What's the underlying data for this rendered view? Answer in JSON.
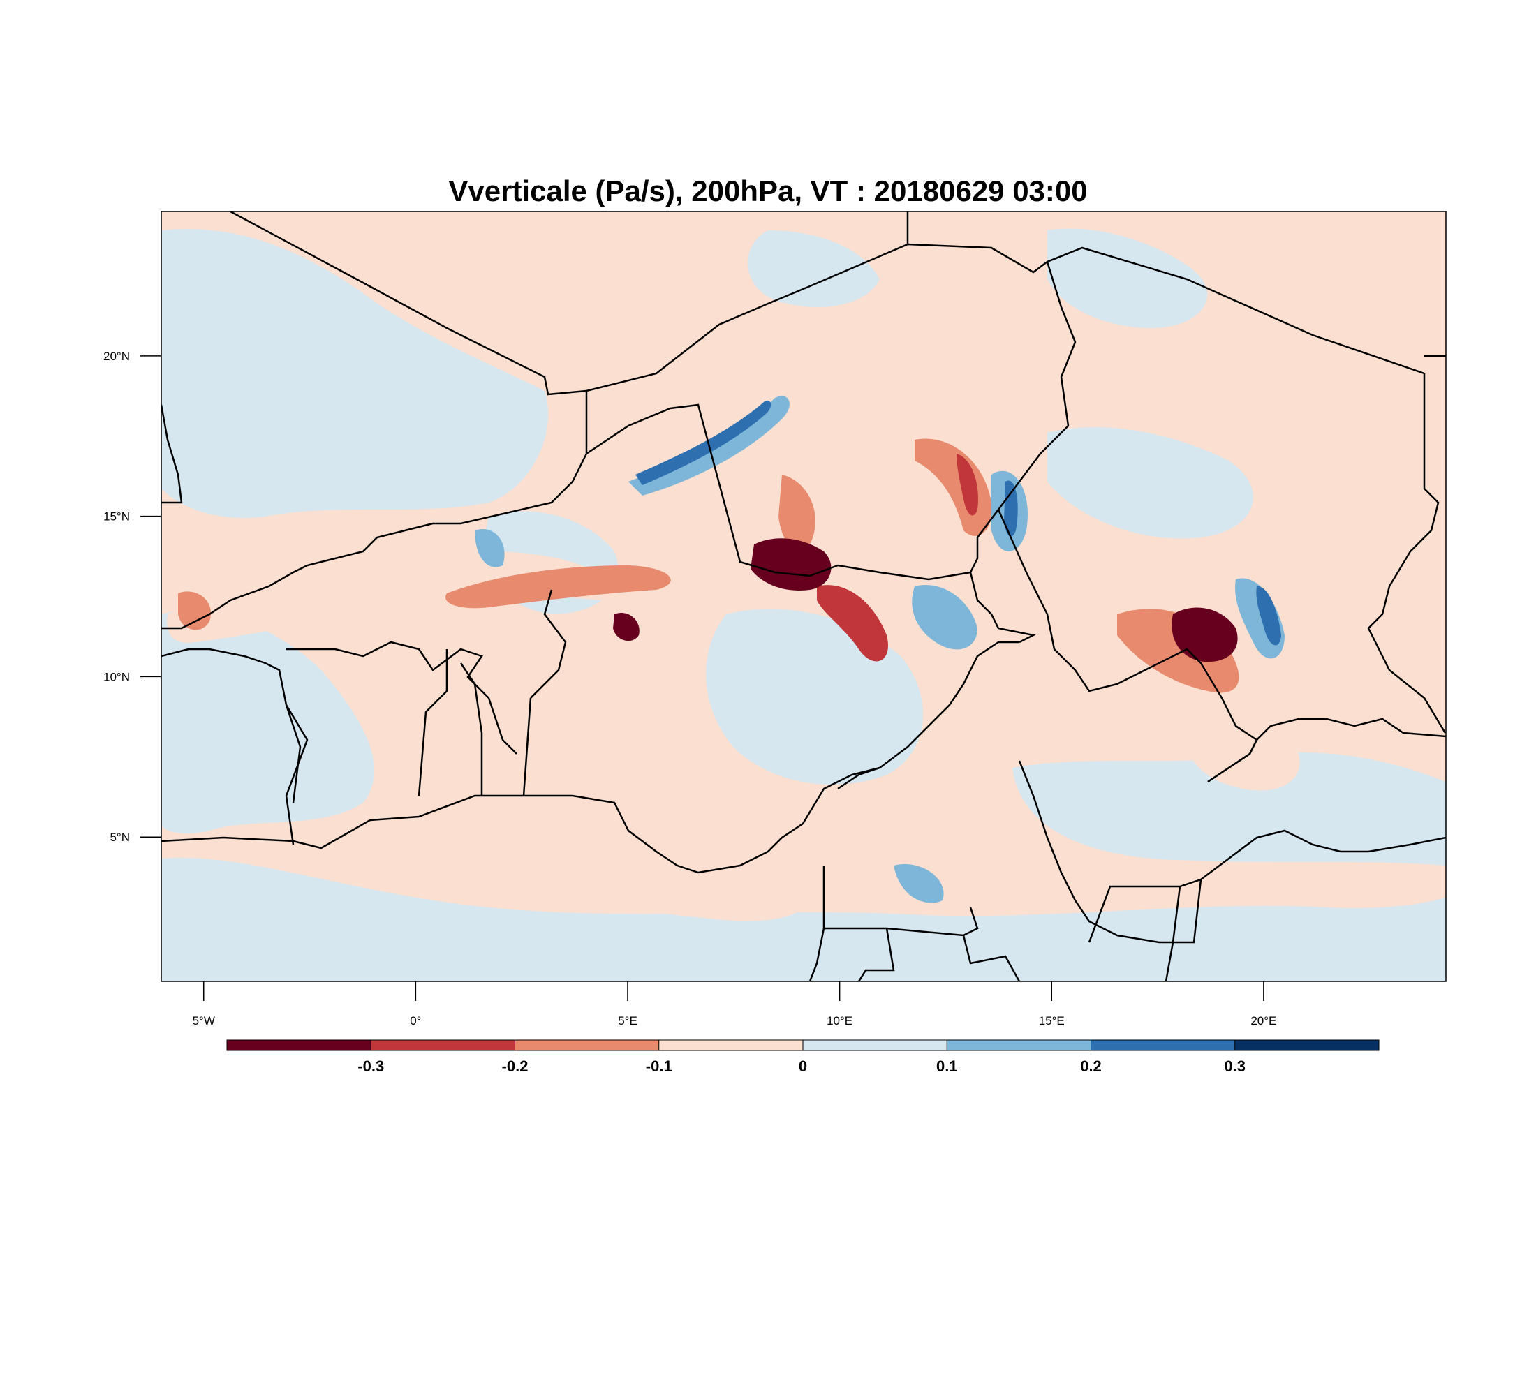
{
  "title": "Vverticale (Pa/s), 200hPa, VT : 20180629  03:00",
  "map": {
    "lon_range": [
      -6,
      24.3
    ],
    "lat_range": [
      0.5,
      24.5
    ],
    "lon_ticks": [
      {
        "value": -5,
        "label": "5°W"
      },
      {
        "value": 0,
        "label": "0°"
      },
      {
        "value": 5,
        "label": "5°E"
      },
      {
        "value": 10,
        "label": "10°E"
      },
      {
        "value": 15,
        "label": "15°E"
      },
      {
        "value": 20,
        "label": "20°E"
      }
    ],
    "lat_ticks": [
      {
        "value": 20,
        "label": "20°N"
      },
      {
        "value": 15,
        "label": "15°N"
      },
      {
        "value": 10,
        "label": "10°N"
      },
      {
        "value": 5,
        "label": "5°N"
      }
    ]
  },
  "colorbar": {
    "colors": [
      "#67001f",
      "#c0363b",
      "#e88a6e",
      "#fbdfd1",
      "#d6e7f0",
      "#7db6d8",
      "#2e6fb0",
      "#053061"
    ],
    "labels": [
      "-0.3",
      "-0.2",
      "-0.1",
      "0",
      "0.1",
      "0.2",
      "0.3"
    ]
  }
}
